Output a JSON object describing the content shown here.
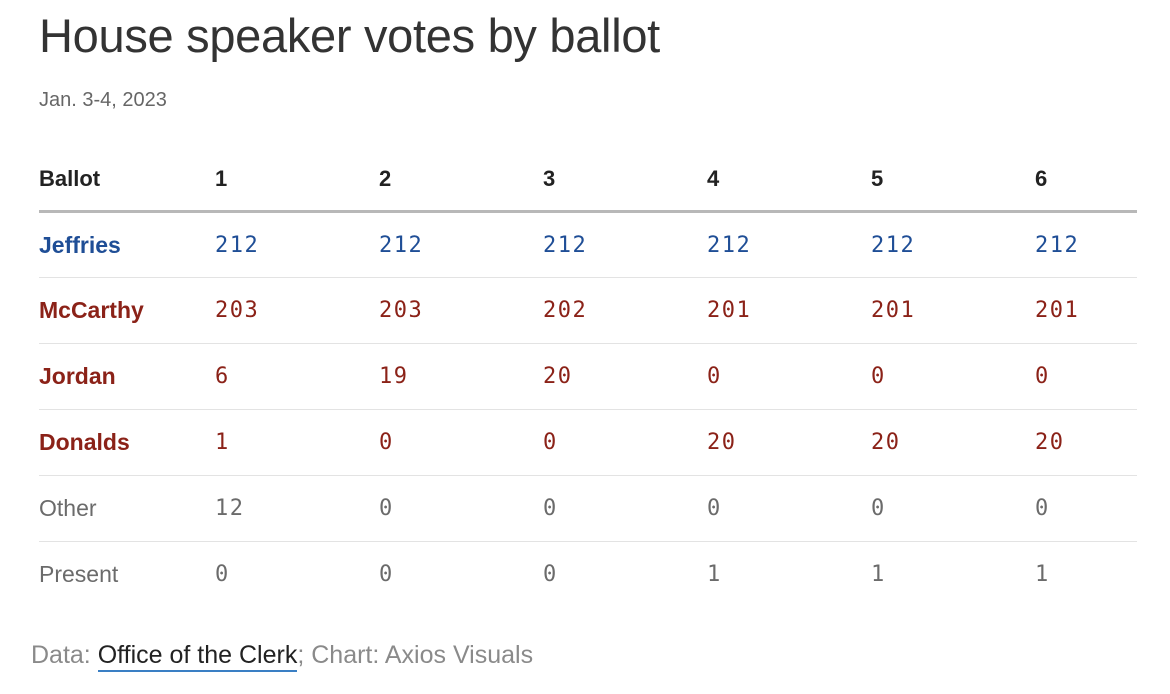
{
  "colors": {
    "democrat": "#1f4e96",
    "republican": "#8b2218",
    "other": "#6b6b6b"
  },
  "chart_data": {
    "type": "table",
    "title": "House speaker votes by ballot",
    "subtitle": "Jan. 3-4, 2023",
    "header_label": "Ballot",
    "columns": [
      "1",
      "2",
      "3",
      "4",
      "5",
      "6"
    ],
    "rows": [
      {
        "name": "Jeffries",
        "party": "democrat",
        "values": [
          212,
          212,
          212,
          212,
          212,
          212
        ]
      },
      {
        "name": "McCarthy",
        "party": "republican",
        "values": [
          203,
          203,
          202,
          201,
          201,
          201
        ]
      },
      {
        "name": "Jordan",
        "party": "republican",
        "values": [
          6,
          19,
          20,
          0,
          0,
          0
        ]
      },
      {
        "name": "Donalds",
        "party": "republican",
        "values": [
          1,
          0,
          0,
          20,
          20,
          20
        ]
      },
      {
        "name": "Other",
        "party": "other",
        "values": [
          12,
          0,
          0,
          0,
          0,
          0
        ]
      },
      {
        "name": "Present",
        "party": "other",
        "values": [
          0,
          0,
          0,
          1,
          1,
          1
        ]
      }
    ]
  },
  "footer": {
    "data_prefix": "Data: ",
    "source_link": "Office of the Clerk",
    "separator": "; ",
    "chart_credit": "Chart: Axios Visuals"
  }
}
